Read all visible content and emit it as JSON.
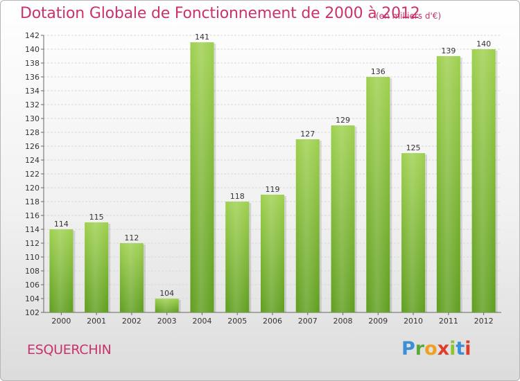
{
  "chart_data": {
    "type": "bar",
    "title": "Dotation Globale de Fonctionnement de 2000 à 2012",
    "subtitle": "(en milliers d'€)",
    "categories": [
      "2000",
      "2001",
      "2002",
      "2003",
      "2004",
      "2005",
      "2006",
      "2007",
      "2008",
      "2009",
      "2010",
      "2011",
      "2012"
    ],
    "values": [
      114,
      115,
      112,
      104,
      141,
      118,
      119,
      127,
      129,
      136,
      125,
      139,
      140
    ],
    "ylim": [
      102,
      142
    ],
    "ytick_step": 2,
    "grid": true,
    "colors": {
      "bar_top": "#9ed04e",
      "bar_bottom": "#5f9e1e",
      "title": "#c8326e"
    }
  },
  "commune": "ESQUERCHIN",
  "logo": {
    "letters": [
      "P",
      "r",
      "o",
      "x",
      "i",
      "t",
      "i"
    ]
  }
}
